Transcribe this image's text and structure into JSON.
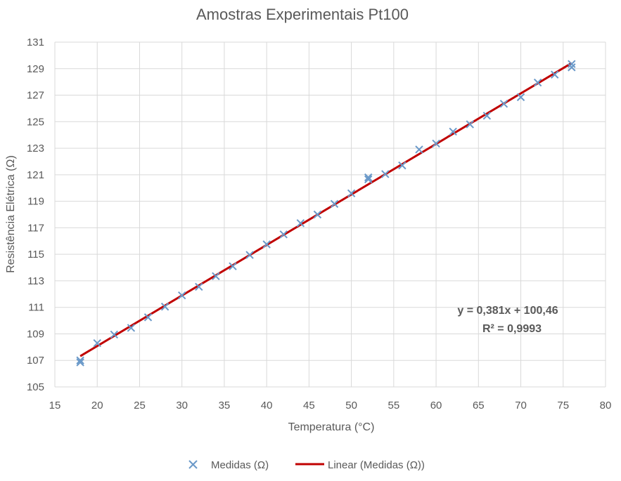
{
  "chart_data": {
    "type": "scatter",
    "title": "Amostras Experimentais Pt100",
    "xlabel": "Temperatura (°C)",
    "ylabel": "Resistência Elétrica (Ω)",
    "xlim": [
      15,
      80
    ],
    "ylim": [
      105,
      131
    ],
    "xticks": [
      15,
      20,
      25,
      30,
      35,
      40,
      45,
      50,
      55,
      60,
      65,
      70,
      75,
      80
    ],
    "yticks": [
      105,
      107,
      109,
      111,
      113,
      115,
      117,
      119,
      121,
      123,
      125,
      127,
      129,
      131
    ],
    "grid": true,
    "legend_position": "bottom",
    "series": [
      {
        "name": "Medidas (Ω)",
        "marker": "x",
        "color": "#6a99c9",
        "x": [
          18,
          18,
          20,
          22,
          24,
          26,
          28,
          30,
          32,
          34,
          36,
          38,
          40,
          42,
          44,
          46,
          48,
          50,
          52,
          52,
          54,
          56,
          58,
          60,
          62,
          64,
          66,
          68,
          70,
          72,
          74,
          76,
          76
        ],
        "y": [
          107.0,
          106.85,
          108.3,
          108.95,
          109.45,
          110.25,
          111.05,
          111.9,
          112.55,
          113.35,
          114.1,
          114.95,
          115.75,
          116.5,
          117.35,
          118.0,
          118.8,
          119.6,
          120.65,
          120.8,
          121.05,
          121.7,
          122.9,
          123.35,
          124.25,
          124.8,
          125.45,
          126.35,
          126.85,
          127.95,
          128.55,
          129.1,
          129.35
        ]
      },
      {
        "name": "Linear (Medidas (Ω))",
        "type": "line",
        "color": "#c00000",
        "x": [
          18,
          76
        ],
        "y": [
          107.32,
          129.42
        ]
      }
    ],
    "annotations": [
      "y = 0,381x + 100,46",
      "R² = 0,9993"
    ]
  }
}
